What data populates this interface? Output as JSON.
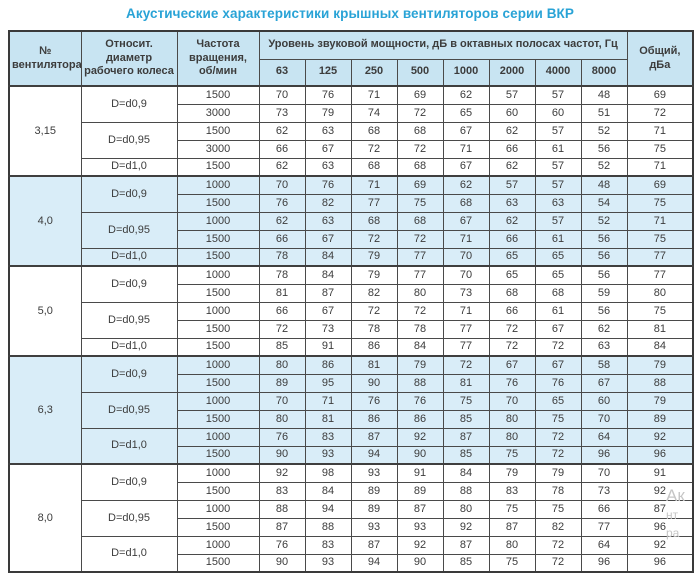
{
  "title": "Акустические характеристики крышных вентиляторов серии ВКР",
  "accent_color": "#29a3d6",
  "header_bg": "#c8e4f2",
  "shaded_row_bg": "#d9edf8",
  "table": {
    "headers": {
      "fan_no": "№ вентилятора",
      "diameter": "Относит. диаметр рабочего колеса",
      "rpm": "Частота вращения, об/мин",
      "spl_group": "Уровень звуковой мощности, дБ в октавных полосах частот, Гц",
      "frequencies": [
        "63",
        "125",
        "250",
        "500",
        "1000",
        "2000",
        "4000",
        "8000"
      ],
      "total": "Общий, дБа"
    },
    "groups": [
      {
        "fan": "3,15",
        "shaded": false,
        "subgroups": [
          {
            "diameter": "D=d0,9",
            "rows": [
              {
                "rpm": "1500",
                "values": [
                  70,
                  76,
                  71,
                  69,
                  62,
                  57,
                  57,
                  48
                ],
                "total": 69
              },
              {
                "rpm": "3000",
                "values": [
                  73,
                  79,
                  74,
                  72,
                  65,
                  60,
                  60,
                  51
                ],
                "total": 72
              }
            ]
          },
          {
            "diameter": "D=d0,95",
            "rows": [
              {
                "rpm": "1500",
                "values": [
                  62,
                  63,
                  68,
                  68,
                  67,
                  62,
                  57,
                  52
                ],
                "total": 71
              },
              {
                "rpm": "3000",
                "values": [
                  66,
                  67,
                  72,
                  72,
                  71,
                  66,
                  61,
                  56
                ],
                "total": 75
              }
            ]
          },
          {
            "diameter": "D=d1,0",
            "rows": [
              {
                "rpm": "1500",
                "values": [
                  62,
                  63,
                  68,
                  68,
                  67,
                  62,
                  57,
                  52
                ],
                "total": 71
              }
            ]
          }
        ]
      },
      {
        "fan": "4,0",
        "shaded": true,
        "subgroups": [
          {
            "diameter": "D=d0,9",
            "rows": [
              {
                "rpm": "1000",
                "values": [
                  70,
                  76,
                  71,
                  69,
                  62,
                  57,
                  57,
                  48
                ],
                "total": 69
              },
              {
                "rpm": "1500",
                "values": [
                  76,
                  82,
                  77,
                  75,
                  68,
                  63,
                  63,
                  54
                ],
                "total": 75
              }
            ]
          },
          {
            "diameter": "D=d0,95",
            "rows": [
              {
                "rpm": "1000",
                "values": [
                  62,
                  63,
                  68,
                  68,
                  67,
                  62,
                  57,
                  52
                ],
                "total": 71
              },
              {
                "rpm": "1500",
                "values": [
                  66,
                  67,
                  72,
                  72,
                  71,
                  66,
                  61,
                  56
                ],
                "total": 75
              }
            ]
          },
          {
            "diameter": "D=d1,0",
            "rows": [
              {
                "rpm": "1500",
                "values": [
                  78,
                  84,
                  79,
                  77,
                  70,
                  65,
                  65,
                  56
                ],
                "total": 77
              }
            ]
          }
        ]
      },
      {
        "fan": "5,0",
        "shaded": false,
        "subgroups": [
          {
            "diameter": "D=d0,9",
            "rows": [
              {
                "rpm": "1000",
                "values": [
                  78,
                  84,
                  79,
                  77,
                  70,
                  65,
                  65,
                  56
                ],
                "total": 77
              },
              {
                "rpm": "1500",
                "values": [
                  81,
                  87,
                  82,
                  80,
                  73,
                  68,
                  68,
                  59
                ],
                "total": 80
              }
            ]
          },
          {
            "diameter": "D=d0,95",
            "rows": [
              {
                "rpm": "1000",
                "values": [
                  66,
                  67,
                  72,
                  72,
                  71,
                  66,
                  61,
                  56
                ],
                "total": 75
              },
              {
                "rpm": "1500",
                "values": [
                  72,
                  73,
                  78,
                  78,
                  77,
                  72,
                  67,
                  62
                ],
                "total": 81
              }
            ]
          },
          {
            "diameter": "D=d1,0",
            "rows": [
              {
                "rpm": "1500",
                "values": [
                  85,
                  91,
                  86,
                  84,
                  77,
                  72,
                  72,
                  63
                ],
                "total": 84
              }
            ]
          }
        ]
      },
      {
        "fan": "6,3",
        "shaded": true,
        "subgroups": [
          {
            "diameter": "D=d0,9",
            "rows": [
              {
                "rpm": "1000",
                "values": [
                  80,
                  86,
                  81,
                  79,
                  72,
                  67,
                  67,
                  58
                ],
                "total": 79
              },
              {
                "rpm": "1500",
                "values": [
                  89,
                  95,
                  90,
                  88,
                  81,
                  76,
                  76,
                  67
                ],
                "total": 88
              }
            ]
          },
          {
            "diameter": "D=d0,95",
            "rows": [
              {
                "rpm": "1000",
                "values": [
                  70,
                  71,
                  76,
                  76,
                  75,
                  70,
                  65,
                  60
                ],
                "total": 79
              },
              {
                "rpm": "1500",
                "values": [
                  80,
                  81,
                  86,
                  86,
                  85,
                  80,
                  75,
                  70
                ],
                "total": 89
              }
            ]
          },
          {
            "diameter": "D=d1,0",
            "rows": [
              {
                "rpm": "1000",
                "values": [
                  76,
                  83,
                  87,
                  92,
                  87,
                  80,
                  72,
                  64
                ],
                "total": 92
              },
              {
                "rpm": "1500",
                "values": [
                  90,
                  93,
                  94,
                  90,
                  85,
                  75,
                  72,
                  96
                ],
                "total": 96
              }
            ]
          }
        ]
      },
      {
        "fan": "8,0",
        "shaded": false,
        "subgroups": [
          {
            "diameter": "D=d0,9",
            "rows": [
              {
                "rpm": "1000",
                "values": [
                  92,
                  98,
                  93,
                  91,
                  84,
                  79,
                  79,
                  70
                ],
                "total": 91
              },
              {
                "rpm": "1500",
                "values": [
                  83,
                  84,
                  89,
                  89,
                  88,
                  83,
                  78,
                  73
                ],
                "total": 92
              }
            ]
          },
          {
            "diameter": "D=d0,95",
            "rows": [
              {
                "rpm": "1000",
                "values": [
                  88,
                  94,
                  89,
                  87,
                  80,
                  75,
                  75,
                  66
                ],
                "total": 87
              },
              {
                "rpm": "1500",
                "values": [
                  87,
                  88,
                  93,
                  93,
                  92,
                  87,
                  82,
                  77
                ],
                "total": 96
              }
            ]
          },
          {
            "diameter": "D=d1,0",
            "rows": [
              {
                "rpm": "1000",
                "values": [
                  76,
                  83,
                  87,
                  92,
                  87,
                  80,
                  72,
                  64
                ],
                "total": 92
              },
              {
                "rpm": "1500",
                "values": [
                  90,
                  93,
                  94,
                  90,
                  85,
                  75,
                  72,
                  96
                ],
                "total": 96
              }
            ]
          }
        ]
      }
    ]
  },
  "watermark": {
    "line1": "Ак",
    "line2": "нт",
    "line3": "ра"
  }
}
